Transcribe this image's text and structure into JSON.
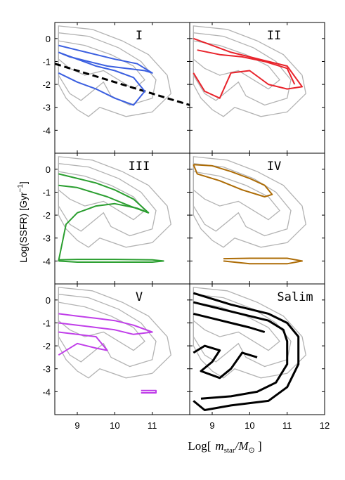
{
  "figure": {
    "xlabel_prefix": "Log[",
    "xlabel_math": "m",
    "xlabel_sub": "star",
    "xlabel_div": "/M",
    "xlabel_sun": "⊙",
    "xlabel_suffix": " ]",
    "ylabel": "Log(SSFR)   [Gyr",
    "ylabel_sup": "−1",
    "ylabel_end": "]"
  },
  "chart_data": {
    "type": "line",
    "description_of_layout": "3x2 grid of contour panels; shared x and y axes",
    "xlim": [
      8.4,
      12
    ],
    "ylim": [
      -5,
      0.7
    ],
    "x_ticks_left": [
      9,
      10,
      11
    ],
    "x_ticks_right": [
      9,
      10,
      11,
      12
    ],
    "y_ticks": [
      0,
      -1,
      -2,
      -3,
      -4
    ],
    "background_color": "#b3b3b3",
    "panels": [
      {
        "label": "I",
        "color": "#3b5fe0",
        "series": [
          {
            "x": [
              8.5,
              9.0,
              9.5,
              10.0,
              10.6,
              11.0,
              10.8,
              10.3,
              9.8,
              9.3,
              8.8,
              8.5
            ],
            "y": [
              -0.3,
              -0.5,
              -0.7,
              -0.9,
              -1.1,
              -1.5,
              -1.4,
              -1.3,
              -1.2,
              -1.0,
              -0.8,
              -0.6
            ]
          },
          {
            "x": [
              8.5,
              9.0,
              9.5,
              10.0,
              10.5,
              10.8,
              10.5,
              10.0,
              9.5,
              9.0,
              8.5
            ],
            "y": [
              -0.6,
              -0.9,
              -1.2,
              -1.4,
              -1.7,
              -2.3,
              -2.9,
              -2.6,
              -2.2,
              -1.9,
              -1.5
            ]
          }
        ],
        "line": {
          "x": [
            8.4,
            12.0
          ],
          "y": [
            -1.1,
            -2.9
          ],
          "style": "dashed"
        }
      },
      {
        "label": "II",
        "color": "#e8232b",
        "series": [
          {
            "x": [
              8.5,
              9.0,
              9.5,
              10.0,
              10.5,
              11.0,
              11.4,
              11.0,
              10.5,
              10.0,
              9.5,
              9.2,
              8.8,
              8.5
            ],
            "y": [
              0.0,
              -0.3,
              -0.6,
              -0.8,
              -1.0,
              -1.2,
              -2.1,
              -2.2,
              -2.0,
              -1.4,
              -1.5,
              -2.6,
              -2.3,
              -1.5
            ]
          },
          {
            "x": [
              8.6,
              9.2,
              9.8,
              10.4,
              11.0,
              11.2
            ],
            "y": [
              -0.5,
              -0.7,
              -0.8,
              -1.0,
              -1.3,
              -2.0
            ]
          }
        ]
      },
      {
        "label": "III",
        "color": "#2a9e2f",
        "series": [
          {
            "x": [
              8.5,
              9.0,
              9.5,
              10.0,
              10.5,
              10.9,
              10.4,
              9.8,
              9.0,
              8.5
            ],
            "y": [
              -0.2,
              -0.4,
              -0.6,
              -0.9,
              -1.3,
              -1.9,
              -1.6,
              -1.2,
              -0.8,
              -0.7
            ]
          },
          {
            "x": [
              8.5,
              8.7,
              9.0,
              9.5,
              10.0,
              10.6,
              10.9
            ],
            "y": [
              -4.0,
              -2.4,
              -1.9,
              -1.6,
              -1.5,
              -1.7,
              -1.9
            ]
          },
          {
            "x": [
              8.5,
              9.0,
              10.0,
              11.0,
              11.3,
              11.0,
              10.0,
              9.0,
              8.5
            ],
            "y": [
              -3.95,
              -3.93,
              -3.93,
              -3.95,
              -4.0,
              -4.05,
              -4.05,
              -4.05,
              -4.0
            ]
          }
        ]
      },
      {
        "label": "IV",
        "color": "#ad6c06",
        "series": [
          {
            "x": [
              8.5,
              9.0,
              9.5,
              10.0,
              10.4,
              10.6,
              10.4,
              9.8,
              9.2,
              8.6,
              8.5
            ],
            "y": [
              0.2,
              0.15,
              -0.1,
              -0.4,
              -0.7,
              -1.1,
              -1.2,
              -0.9,
              -0.5,
              -0.2,
              0.2
            ]
          },
          {
            "x": [
              9.3,
              10.0,
              11.0,
              11.4,
              11.0,
              10.0,
              9.3
            ],
            "y": [
              -3.9,
              -3.88,
              -3.88,
              -4.0,
              -4.12,
              -4.12,
              -4.0
            ]
          }
        ]
      },
      {
        "label": "V",
        "color": "#c03ee9",
        "series": [
          {
            "x": [
              8.5,
              9.0,
              9.5,
              10.0,
              10.5,
              11.0,
              10.5,
              10.0,
              9.5,
              9.0,
              8.5
            ],
            "y": [
              -0.6,
              -0.7,
              -0.8,
              -0.9,
              -1.1,
              -1.4,
              -1.5,
              -1.3,
              -1.2,
              -1.1,
              -1.0
            ]
          },
          {
            "x": [
              8.5,
              9.0,
              9.5,
              9.8,
              9.5,
              9.0,
              8.5
            ],
            "y": [
              -1.4,
              -1.5,
              -1.6,
              -2.2,
              -2.1,
              -1.9,
              -2.4
            ]
          },
          {
            "x": [
              10.7,
              11.1,
              11.1,
              10.7
            ],
            "y": [
              -3.95,
              -3.95,
              -4.05,
              -4.05
            ]
          }
        ]
      },
      {
        "label": "Salim",
        "color": "#000000",
        "series": [
          {
            "x": [
              8.5,
              9.5,
              10.5,
              11.0,
              11.3,
              11.3,
              11.0,
              10.5,
              9.5,
              8.8,
              8.5
            ],
            "y": [
              0.3,
              -0.2,
              -0.6,
              -1.0,
              -1.6,
              -2.8,
              -3.8,
              -4.4,
              -4.6,
              -4.8,
              -4.4
            ]
          },
          {
            "x": [
              8.5,
              9.5,
              10.5,
              10.9,
              11.0,
              11.0,
              10.7,
              10.2,
              9.5,
              8.7
            ],
            "y": [
              -0.1,
              -0.5,
              -0.9,
              -1.3,
              -1.8,
              -2.8,
              -3.6,
              -4.0,
              -4.2,
              -4.3
            ]
          },
          {
            "x": [
              8.5,
              9.0,
              9.5,
              10.0,
              10.4
            ],
            "y": [
              -0.6,
              -0.8,
              -1.0,
              -1.2,
              -1.4
            ]
          },
          {
            "x": [
              8.5,
              8.8,
              9.2,
              9.0,
              8.7,
              9.2,
              9.5,
              9.8,
              10.2
            ],
            "y": [
              -2.3,
              -2.0,
              -2.2,
              -2.7,
              -3.1,
              -3.4,
              -3.0,
              -2.3,
              -2.5
            ]
          }
        ]
      }
    ]
  }
}
